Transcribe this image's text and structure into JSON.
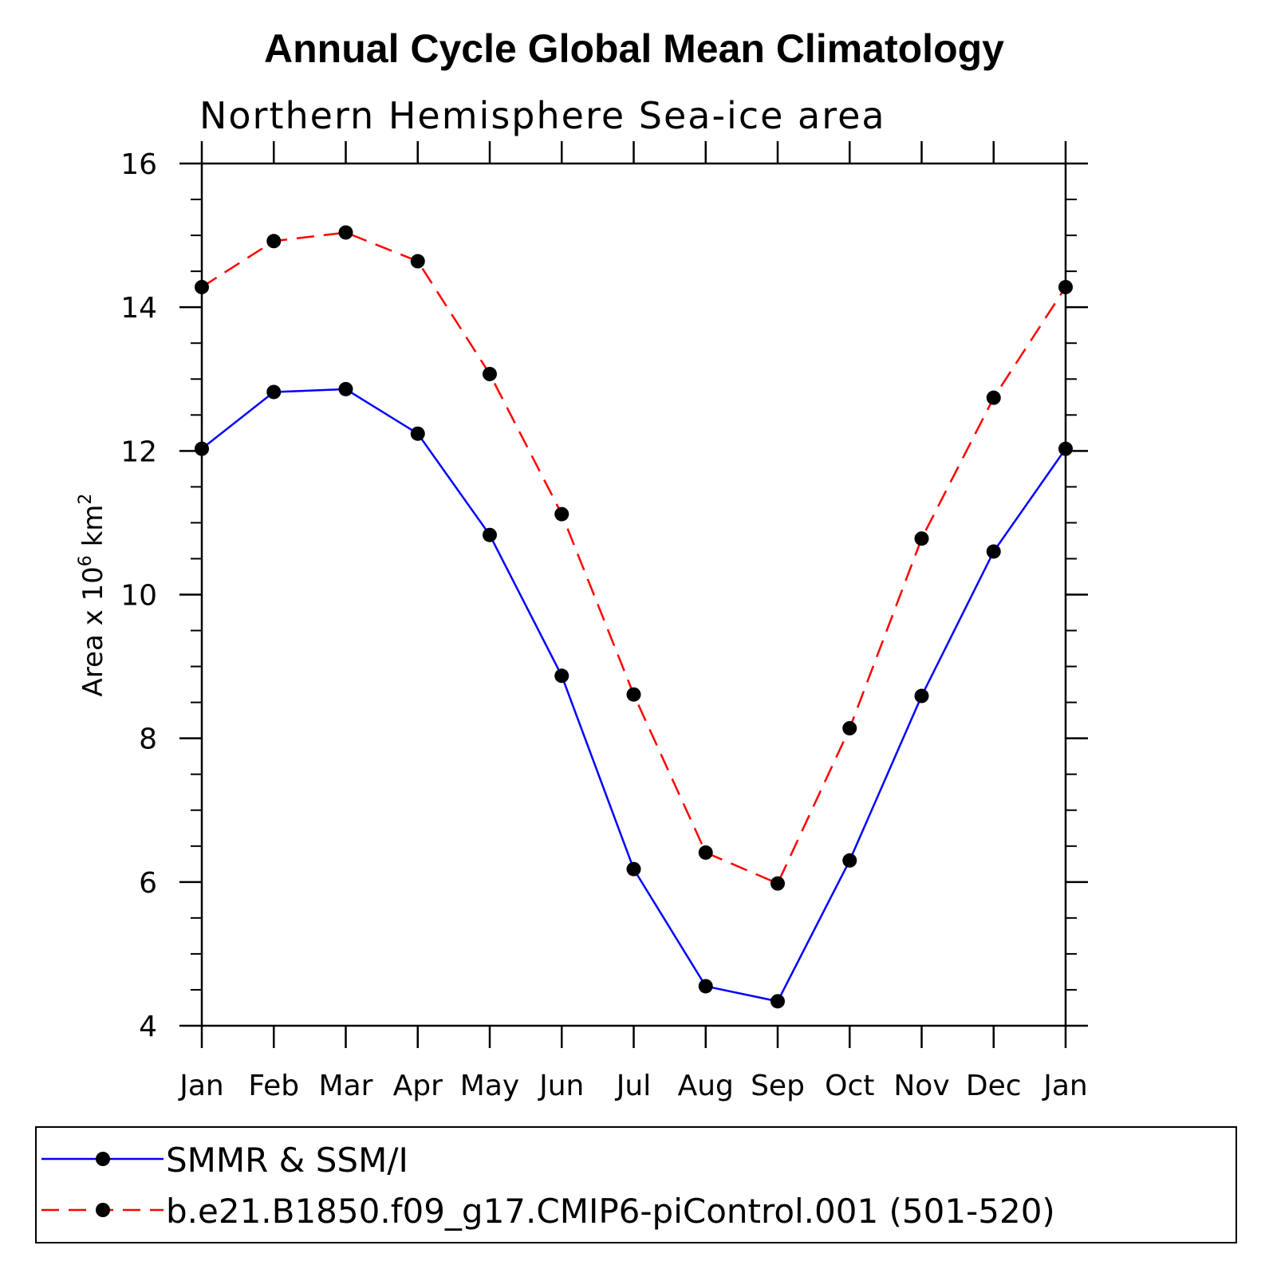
{
  "chart_data": {
    "type": "line",
    "title": "Annual Cycle Global Mean Climatology",
    "subtitle": "Northern Hemisphere Sea-ice area",
    "ylabel_prefix": "Area x 10",
    "ylabel_exp": "6",
    "ylabel_unit": " km",
    "ylabel_unit_exp": "2",
    "categories": [
      "Jan",
      "Feb",
      "Mar",
      "Apr",
      "May",
      "Jun",
      "Jul",
      "Aug",
      "Sep",
      "Oct",
      "Nov",
      "Dec",
      "Jan"
    ],
    "ylim": [
      4,
      16
    ],
    "yticks": [
      4,
      6,
      8,
      10,
      12,
      14,
      16
    ],
    "series": [
      {
        "name": "SMMR & SSM/I",
        "color": "#0000ff",
        "dash": "solid",
        "values": [
          12.03,
          12.82,
          12.86,
          12.24,
          10.83,
          8.87,
          6.18,
          4.55,
          4.34,
          6.3,
          8.59,
          10.6,
          12.03
        ]
      },
      {
        "name": "b.e21.B1850.f09_g17.CMIP6-piControl.001 (501-520)",
        "color": "#ff0000",
        "dash": "dashed",
        "values": [
          14.28,
          14.92,
          15.04,
          14.64,
          13.07,
          11.12,
          8.61,
          6.41,
          5.98,
          8.14,
          10.78,
          12.74,
          14.28
        ]
      }
    ],
    "legend_position": "bottom"
  }
}
